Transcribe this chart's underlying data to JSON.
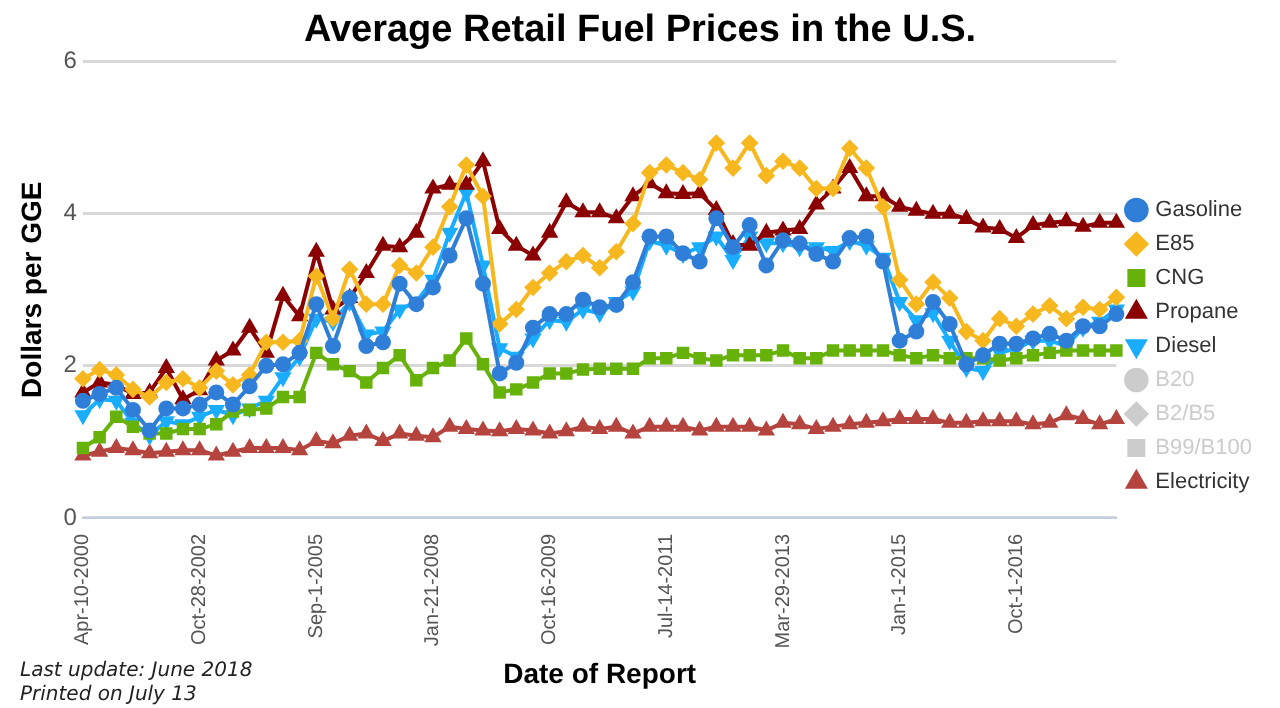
{
  "chart_data": {
    "type": "line",
    "title": "Average Retail Fuel Prices in the U.S.",
    "xlabel": "Date of Report",
    "ylabel": "Dollars per GGE",
    "annotations": [
      "Last update: June 2018",
      "Printed on July 13"
    ],
    "categories": [
      "Apr-10-2000",
      null,
      null,
      null,
      null,
      null,
      null,
      "Oct-28-2002",
      null,
      null,
      null,
      null,
      null,
      null,
      "Sep-1-2005",
      null,
      null,
      null,
      null,
      null,
      null,
      "Jan-21-2008",
      null,
      null,
      null,
      null,
      null,
      null,
      "Oct-16-2009",
      null,
      null,
      null,
      null,
      null,
      null,
      "Jul-14-2011",
      null,
      null,
      null,
      null,
      null,
      null,
      "Mar-29-2013",
      null,
      null,
      null,
      null,
      null,
      null,
      "Jan-1-2015",
      null,
      null,
      null,
      null,
      null,
      null,
      "Oct-1-2016",
      null,
      null,
      null,
      null,
      null,
      null
    ],
    "ylim": [
      0,
      6
    ],
    "yticks": [
      0,
      2,
      4,
      6
    ],
    "grid": "y",
    "legend": "right",
    "series": [
      {
        "name": "Gasoline",
        "color": "#2f7ed8",
        "marker": "circle",
        "values": [
          1.54,
          1.63,
          1.71,
          1.42,
          1.15,
          1.44,
          1.44,
          1.49,
          1.65,
          1.49,
          1.73,
          2.0,
          2.02,
          2.17,
          2.81,
          2.26,
          2.89,
          2.26,
          2.31,
          3.08,
          2.81,
          3.03,
          3.45,
          3.94,
          3.08,
          1.9,
          2.04,
          2.5,
          2.68,
          2.68,
          2.87,
          2.77,
          2.8,
          3.1,
          3.7,
          3.7,
          3.48,
          3.37,
          3.94,
          3.56,
          3.85,
          3.32,
          3.65,
          3.61,
          3.47,
          3.37,
          3.68,
          3.7,
          3.37,
          2.33,
          2.45,
          2.84,
          2.55,
          2.02,
          2.14,
          2.29,
          2.29,
          2.36,
          2.42,
          2.33,
          2.52,
          2.52,
          2.68
        ]
      },
      {
        "name": "E85",
        "color": "#f7b81f",
        "marker": "diamond",
        "values": [
          1.83,
          1.95,
          1.88,
          1.69,
          1.59,
          1.78,
          1.83,
          1.71,
          1.93,
          1.75,
          1.88,
          2.31,
          2.31,
          2.33,
          3.18,
          2.62,
          3.27,
          2.81,
          2.81,
          3.32,
          3.22,
          3.56,
          4.09,
          4.64,
          4.23,
          2.55,
          2.74,
          3.03,
          3.22,
          3.37,
          3.45,
          3.29,
          3.5,
          3.87,
          4.54,
          4.64,
          4.54,
          4.45,
          4.93,
          4.6,
          4.93,
          4.5,
          4.69,
          4.6,
          4.33,
          4.33,
          4.86,
          4.6,
          4.09,
          3.13,
          2.81,
          3.1,
          2.89,
          2.45,
          2.33,
          2.62,
          2.52,
          2.68,
          2.79,
          2.62,
          2.77,
          2.74,
          2.9
        ]
      },
      {
        "name": "CNG",
        "color": "#66b20a",
        "marker": "square",
        "values": [
          0.92,
          1.06,
          1.33,
          1.2,
          1.11,
          1.11,
          1.17,
          1.17,
          1.23,
          1.4,
          1.42,
          1.44,
          1.59,
          1.59,
          2.17,
          2.02,
          1.93,
          1.78,
          1.97,
          2.14,
          1.81,
          1.97,
          2.07,
          2.36,
          2.02,
          1.65,
          1.69,
          1.78,
          1.9,
          1.9,
          1.95,
          1.96,
          1.96,
          1.96,
          2.1,
          2.1,
          2.17,
          2.1,
          2.07,
          2.14,
          2.14,
          2.14,
          2.2,
          2.1,
          2.1,
          2.2,
          2.2,
          2.2,
          2.2,
          2.14,
          2.1,
          2.14,
          2.1,
          2.1,
          2.1,
          2.07,
          2.1,
          2.14,
          2.17,
          2.2,
          2.2,
          2.2,
          2.2
        ]
      },
      {
        "name": "Propane",
        "color": "#8b0000",
        "marker": "triangle",
        "values": [
          1.65,
          1.78,
          1.75,
          1.63,
          1.65,
          1.97,
          1.56,
          1.68,
          2.07,
          2.2,
          2.5,
          2.17,
          2.92,
          2.65,
          3.5,
          2.74,
          2.89,
          3.22,
          3.58,
          3.56,
          3.75,
          4.33,
          4.38,
          4.38,
          4.69,
          3.8,
          3.58,
          3.45,
          3.75,
          4.15,
          4.02,
          4.02,
          3.94,
          4.23,
          4.4,
          4.27,
          4.26,
          4.27,
          4.05,
          3.6,
          3.58,
          3.75,
          3.78,
          3.8,
          4.12,
          4.33,
          4.6,
          4.23,
          4.23,
          4.09,
          4.04,
          4.0,
          4.0,
          3.93,
          3.82,
          3.8,
          3.68,
          3.85,
          3.88,
          3.9,
          3.83,
          3.88,
          3.88
        ]
      },
      {
        "name": "Diesel",
        "color": "#1aadff",
        "marker": "triangle-down",
        "values": [
          1.35,
          1.56,
          1.54,
          1.25,
          1.08,
          1.27,
          1.23,
          1.33,
          1.42,
          1.35,
          1.44,
          1.54,
          1.85,
          2.12,
          2.62,
          2.58,
          2.84,
          2.41,
          2.45,
          2.74,
          2.84,
          3.13,
          3.75,
          4.28,
          3.32,
          2.23,
          2.12,
          2.36,
          2.6,
          2.58,
          2.74,
          2.69,
          2.84,
          2.98,
          3.64,
          3.58,
          3.47,
          3.56,
          3.7,
          3.39,
          3.7,
          3.61,
          3.61,
          3.56,
          3.56,
          3.51,
          3.64,
          3.58,
          3.42,
          2.84,
          2.6,
          2.69,
          2.33,
          1.97,
          1.93,
          2.17,
          2.23,
          2.33,
          2.33,
          2.26,
          2.5,
          2.58,
          2.74
        ]
      },
      {
        "name": "B20",
        "color": "#cccccc",
        "marker": "circle",
        "values": [
          null,
          null,
          null,
          null,
          null,
          null,
          null,
          null,
          null,
          null,
          null,
          null,
          null,
          null,
          null,
          null,
          null,
          null,
          null,
          null,
          null,
          null,
          null,
          null,
          null,
          null,
          null,
          null,
          null,
          null,
          null,
          null,
          null,
          null,
          null,
          null,
          null,
          null,
          null,
          null,
          null,
          null,
          null,
          null,
          null,
          null,
          null,
          null,
          null,
          null,
          null,
          null,
          null,
          null,
          null,
          null,
          null,
          null,
          null,
          null,
          null,
          null,
          null
        ]
      },
      {
        "name": "B2/B5",
        "color": "#cccccc",
        "marker": "diamond",
        "values": [
          null,
          null,
          null,
          null,
          null,
          null,
          null,
          null,
          null,
          null,
          null,
          null,
          null,
          null,
          null,
          null,
          null,
          null,
          null,
          null,
          null,
          null,
          null,
          null,
          null,
          null,
          null,
          null,
          null,
          null,
          null,
          null,
          null,
          null,
          null,
          null,
          null,
          null,
          null,
          null,
          null,
          null,
          null,
          null,
          null,
          null,
          null,
          null,
          null,
          null,
          null,
          null,
          null,
          null,
          null,
          null,
          null,
          null,
          null,
          null,
          null,
          null,
          null
        ]
      },
      {
        "name": "B99/B100",
        "color": "#cccccc",
        "marker": "square",
        "values": [
          null,
          null,
          null,
          null,
          null,
          null,
          null,
          null,
          null,
          null,
          null,
          null,
          null,
          null,
          null,
          null,
          null,
          null,
          null,
          null,
          null,
          null,
          null,
          null,
          null,
          null,
          null,
          null,
          null,
          null,
          null,
          null,
          null,
          null,
          null,
          null,
          null,
          null,
          null,
          null,
          null,
          null,
          null,
          null,
          null,
          null,
          null,
          null,
          null,
          null,
          null,
          null,
          null,
          null,
          null,
          null,
          null,
          null,
          null,
          null,
          null,
          null,
          null
        ]
      },
      {
        "name": "Electricity",
        "color": "#b5443f",
        "marker": "triangle",
        "values": [
          0.82,
          0.87,
          0.92,
          0.89,
          0.85,
          0.87,
          0.89,
          0.89,
          0.82,
          0.87,
          0.92,
          0.92,
          0.92,
          0.89,
          1.01,
          0.98,
          1.08,
          1.11,
          1.01,
          1.11,
          1.08,
          1.06,
          1.2,
          1.17,
          1.15,
          1.14,
          1.17,
          1.15,
          1.11,
          1.14,
          1.2,
          1.17,
          1.2,
          1.11,
          1.2,
          1.2,
          1.2,
          1.15,
          1.2,
          1.2,
          1.2,
          1.15,
          1.25,
          1.23,
          1.17,
          1.2,
          1.23,
          1.25,
          1.27,
          1.3,
          1.3,
          1.3,
          1.25,
          1.25,
          1.27,
          1.27,
          1.27,
          1.23,
          1.25,
          1.35,
          1.3,
          1.23,
          1.3
        ]
      }
    ]
  }
}
